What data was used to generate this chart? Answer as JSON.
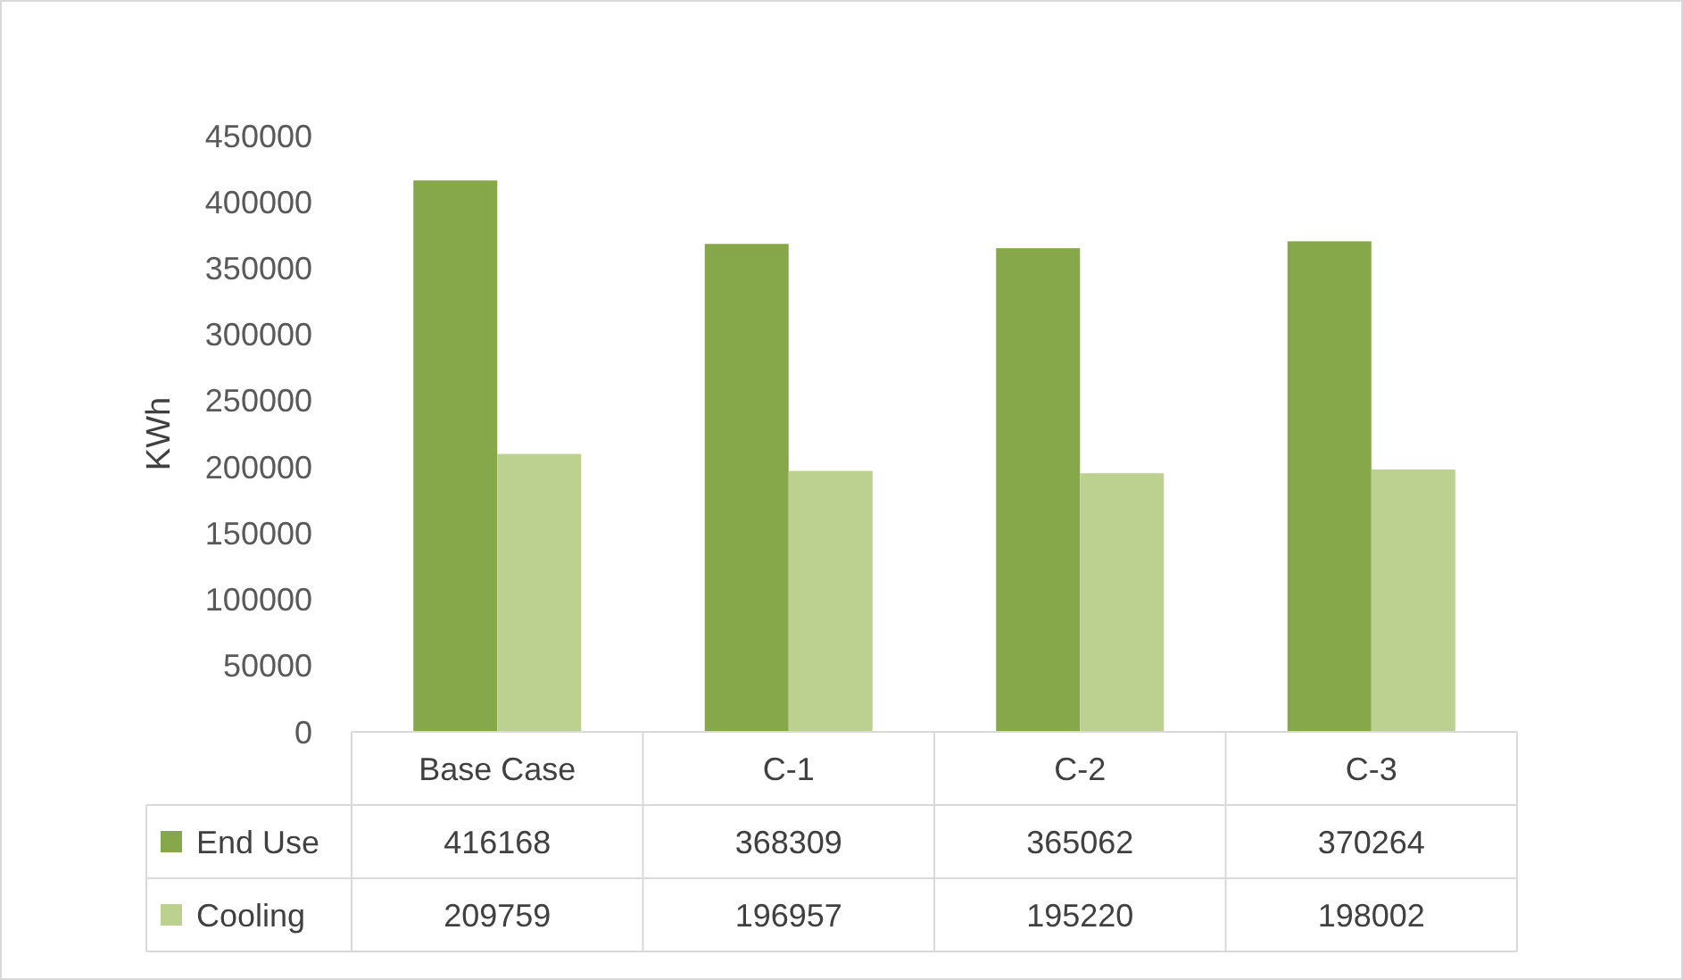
{
  "chart_data": {
    "type": "bar",
    "ylabel": "KWh",
    "categories": [
      "Base Case",
      "C-1",
      "C-2",
      "C-3"
    ],
    "series": [
      {
        "name": "End Use",
        "color": "#86a84a",
        "values": [
          416168,
          368309,
          365062,
          370264
        ]
      },
      {
        "name": "Cooling",
        "color": "#bcd08f",
        "values": [
          209759,
          196957,
          195220,
          198002
        ]
      }
    ],
    "ylim": [
      0,
      450000
    ],
    "yticks": [
      0,
      50000,
      100000,
      150000,
      200000,
      250000,
      300000,
      350000,
      400000,
      450000
    ],
    "grid": false,
    "legend": "bottom",
    "data_labels": true
  }
}
